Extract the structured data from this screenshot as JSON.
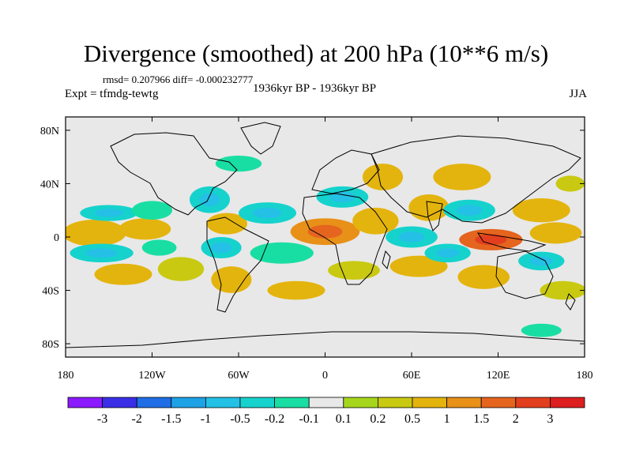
{
  "title": "Divergence (smoothed) at 200 hPa (10**6 m/s)",
  "stats": "rmsd= 0.207966 diff= -0.000232777",
  "experiment": "Expt = tfmdg-tewtg",
  "period": "1936kyr BP - 1936kyr BP",
  "season": "JJA",
  "colors": {
    "background_field": "#e8e8e8",
    "coastline": "#000000"
  },
  "chart_data": {
    "type": "heatmap",
    "projection": "cylindrical-equidistant",
    "x_range": [
      -180,
      180
    ],
    "y_range": [
      -90,
      90
    ],
    "x_ticks": [
      {
        "value": -180,
        "label": "180"
      },
      {
        "value": -120,
        "label": "120W"
      },
      {
        "value": -60,
        "label": "60W"
      },
      {
        "value": 0,
        "label": "0"
      },
      {
        "value": 60,
        "label": "60E"
      },
      {
        "value": 120,
        "label": "120E"
      },
      {
        "value": 180,
        "label": "180"
      }
    ],
    "y_ticks": [
      {
        "value": 80,
        "label": "80N"
      },
      {
        "value": 40,
        "label": "40N"
      },
      {
        "value": 0,
        "label": "0"
      },
      {
        "value": -40,
        "label": "40S"
      },
      {
        "value": -80,
        "label": "80S"
      }
    ],
    "contour_levels": [
      "-3",
      "-2",
      "-1.5",
      "-1",
      "-0.5",
      "-0.2",
      "-0.1",
      "0.1",
      "0.2",
      "0.5",
      "1",
      "1.5",
      "2",
      "3"
    ],
    "colorbar_colors": [
      "#8c1aff",
      "#3a2fe6",
      "#1f6ee6",
      "#1ea2e6",
      "#24c0e6",
      "#16d2cd",
      "#19dea3",
      "#e8e8e8",
      "#a6d61c",
      "#c9c912",
      "#e4b40e",
      "#e89018",
      "#e5641e",
      "#e23f1e",
      "#dd1f1f"
    ],
    "features": [
      {
        "type": "blob",
        "lon": -160,
        "lat": 3,
        "rx": 22,
        "ry": 10,
        "value": 0.5
      },
      {
        "type": "blob",
        "lon": -125,
        "lat": 6,
        "rx": 18,
        "ry": 8,
        "value": 0.5
      },
      {
        "type": "blob",
        "lon": -150,
        "lat": 18,
        "rx": 20,
        "ry": 6,
        "value": -0.5
      },
      {
        "type": "blob",
        "lon": -120,
        "lat": 20,
        "rx": 14,
        "ry": 7,
        "value": -0.2
      },
      {
        "type": "blob",
        "lon": -155,
        "lat": -12,
        "rx": 22,
        "ry": 7,
        "value": -0.5
      },
      {
        "type": "blob",
        "lon": -115,
        "lat": -8,
        "rx": 12,
        "ry": 6,
        "value": -0.2
      },
      {
        "type": "blob",
        "lon": -140,
        "lat": -28,
        "rx": 20,
        "ry": 8,
        "value": 0.5
      },
      {
        "type": "blob",
        "lon": -100,
        "lat": -24,
        "rx": 16,
        "ry": 9,
        "value": 0.2
      },
      {
        "type": "blob",
        "lon": -80,
        "lat": 28,
        "rx": 14,
        "ry": 10,
        "value": -0.5
      },
      {
        "type": "blob",
        "lon": -68,
        "lat": 10,
        "rx": 14,
        "ry": 8,
        "value": 0.5
      },
      {
        "type": "blob",
        "lon": -72,
        "lat": -8,
        "rx": 14,
        "ry": 8,
        "value": -0.5
      },
      {
        "type": "blob",
        "lon": -65,
        "lat": -32,
        "rx": 14,
        "ry": 10,
        "value": 0.5
      },
      {
        "type": "blob",
        "lon": -40,
        "lat": 18,
        "rx": 20,
        "ry": 8,
        "value": -0.5
      },
      {
        "type": "blob",
        "lon": -30,
        "lat": -12,
        "rx": 22,
        "ry": 8,
        "value": -0.2
      },
      {
        "type": "blob",
        "lon": -20,
        "lat": -40,
        "rx": 20,
        "ry": 7,
        "value": 0.5
      },
      {
        "type": "blob",
        "lon": 0,
        "lat": 4,
        "rx": 24,
        "ry": 10,
        "value": 1.0
      },
      {
        "type": "blob",
        "lon": 12,
        "lat": 30,
        "rx": 18,
        "ry": 8,
        "value": -0.5
      },
      {
        "type": "blob",
        "lon": 35,
        "lat": 12,
        "rx": 16,
        "ry": 10,
        "value": 0.5
      },
      {
        "type": "blob",
        "lon": 40,
        "lat": 45,
        "rx": 14,
        "ry": 10,
        "value": 0.5
      },
      {
        "type": "blob",
        "lon": 20,
        "lat": -25,
        "rx": 18,
        "ry": 7,
        "value": 0.2
      },
      {
        "type": "blob",
        "lon": 60,
        "lat": 0,
        "rx": 18,
        "ry": 8,
        "value": -0.5
      },
      {
        "type": "blob",
        "lon": 72,
        "lat": 22,
        "rx": 14,
        "ry": 10,
        "value": 0.5
      },
      {
        "type": "blob",
        "lon": 65,
        "lat": -22,
        "rx": 20,
        "ry": 8,
        "value": 0.5
      },
      {
        "type": "blob",
        "lon": 95,
        "lat": 45,
        "rx": 20,
        "ry": 10,
        "value": 0.5
      },
      {
        "type": "blob",
        "lon": 100,
        "lat": 20,
        "rx": 18,
        "ry": 8,
        "value": -0.5
      },
      {
        "type": "blob",
        "lon": 115,
        "lat": -2,
        "rx": 22,
        "ry": 8,
        "value": 1.5
      },
      {
        "type": "blob",
        "lon": 85,
        "lat": -12,
        "rx": 16,
        "ry": 7,
        "value": -0.5
      },
      {
        "type": "blob",
        "lon": 110,
        "lat": -30,
        "rx": 18,
        "ry": 9,
        "value": 0.5
      },
      {
        "type": "blob",
        "lon": 150,
        "lat": 20,
        "rx": 20,
        "ry": 9,
        "value": 0.5
      },
      {
        "type": "blob",
        "lon": 160,
        "lat": 3,
        "rx": 18,
        "ry": 8,
        "value": 0.5
      },
      {
        "type": "blob",
        "lon": 150,
        "lat": -18,
        "rx": 16,
        "ry": 7,
        "value": -0.5
      },
      {
        "type": "blob",
        "lon": 165,
        "lat": -40,
        "rx": 16,
        "ry": 7,
        "value": 0.2
      },
      {
        "type": "blob",
        "lon": 150,
        "lat": -70,
        "rx": 14,
        "ry": 5,
        "value": -0.2
      },
      {
        "type": "blob",
        "lon": -60,
        "lat": 55,
        "rx": 16,
        "ry": 6,
        "value": -0.2
      },
      {
        "type": "blob",
        "lon": 170,
        "lat": 40,
        "rx": 10,
        "ry": 6,
        "value": 0.2
      }
    ]
  }
}
